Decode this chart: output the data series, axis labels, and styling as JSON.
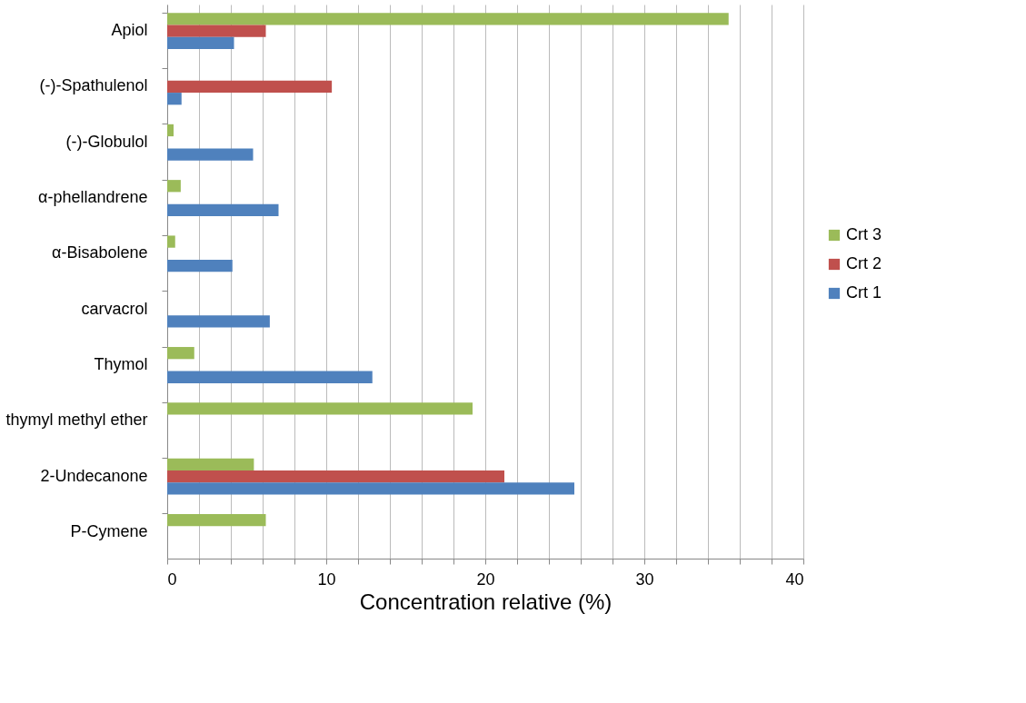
{
  "chart_data": {
    "type": "bar",
    "orientation": "horizontal",
    "xlabel": "Concentration relative (%)",
    "categories": [
      "Apiol",
      "(-)-Spathulenol",
      "(-)-Globulol",
      "α-phellandrene",
      "α-Bisabolene",
      "carvacrol",
      "Thymol",
      "thymyl methyl ether",
      "2-Undecanone",
      "P-Cymene"
    ],
    "series": [
      {
        "name": "Crt 3",
        "color": "#9bbb59",
        "values": [
          35.3,
          null,
          0.4,
          0.85,
          0.5,
          null,
          1.7,
          19.2,
          5.45,
          6.2
        ]
      },
      {
        "name": "Crt 2",
        "color": "#c0504d",
        "values": [
          6.2,
          10.35,
          null,
          null,
          null,
          null,
          null,
          null,
          21.2,
          null
        ]
      },
      {
        "name": "Crt 1",
        "color": "#4f81bd",
        "values": [
          4.2,
          0.9,
          5.4,
          7.0,
          4.1,
          6.45,
          12.9,
          null,
          25.6,
          null
        ]
      }
    ],
    "xlim": [
      0,
      40
    ],
    "xticks": [
      0,
      {
        "value": 2,
        "label": null
      },
      {
        "value": 4,
        "label": null
      },
      {
        "value": 6,
        "label": null
      },
      {
        "value": 8,
        "label": null
      },
      10,
      {
        "value": 12,
        "label": null
      },
      {
        "value": 14,
        "label": null
      },
      {
        "value": 16,
        "label": null
      },
      {
        "value": 18,
        "label": null
      },
      20,
      {
        "value": 22,
        "label": null
      },
      {
        "value": 24,
        "label": null
      },
      {
        "value": 26,
        "label": null
      },
      {
        "value": 28,
        "label": null
      },
      30,
      {
        "value": 32,
        "label": null
      },
      {
        "value": 34,
        "label": null
      },
      {
        "value": 36,
        "label": null
      },
      {
        "value": 38,
        "label": null
      },
      40
    ],
    "grid": "x",
    "legend": "right"
  }
}
